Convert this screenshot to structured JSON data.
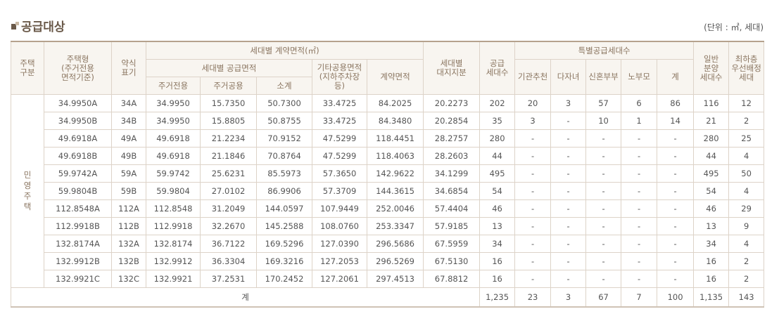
{
  "header": {
    "title": "공급대상",
    "unit": "(단위 : ㎡, 세대)"
  },
  "table": {
    "head": {
      "row1": [
        "주택\n구분",
        "주택형\n(주거전용\n면적기준)",
        "약식\n표기",
        "세대별 계약면적(㎡)",
        "세대별\n대지지분",
        "공급\n세대수",
        "특별공급세대수",
        "일반\n분양\n세대수",
        "최하층\n우선배정\n세대"
      ],
      "row2": [
        "세대별 공급면적",
        "기타공용면적\n(지하주차장\n등)",
        "계약면적",
        "기관추천",
        "다자녀",
        "신혼부부",
        "노부모",
        "계"
      ],
      "row3": [
        "주거전용",
        "주거공용",
        "소계"
      ]
    },
    "group": "민\n영\n주\n택",
    "rows": [
      [
        "34.9950A",
        "34A",
        "34.9950",
        "15.7350",
        "50.7300",
        "33.4725",
        "84.2025",
        "20.2273",
        "202",
        "20",
        "3",
        "57",
        "6",
        "86",
        "116",
        "12"
      ],
      [
        "34.9950B",
        "34B",
        "34.9950",
        "15.8805",
        "50.8755",
        "33.4725",
        "84.3480",
        "20.2854",
        "35",
        "3",
        "-",
        "10",
        "1",
        "14",
        "21",
        "2"
      ],
      [
        "49.6918A",
        "49A",
        "49.6918",
        "21.2234",
        "70.9152",
        "47.5299",
        "118.4451",
        "28.2757",
        "280",
        "-",
        "-",
        "-",
        "-",
        "-",
        "280",
        "25"
      ],
      [
        "49.6918B",
        "49B",
        "49.6918",
        "21.1846",
        "70.8764",
        "47.5299",
        "118.4063",
        "28.2603",
        "44",
        "-",
        "-",
        "-",
        "-",
        "-",
        "44",
        "4"
      ],
      [
        "59.9742A",
        "59A",
        "59.9742",
        "25.6231",
        "85.5973",
        "57.3650",
        "142.9622",
        "34.1299",
        "495",
        "-",
        "-",
        "-",
        "-",
        "-",
        "495",
        "50"
      ],
      [
        "59.9804B",
        "59B",
        "59.9804",
        "27.0102",
        "86.9906",
        "57.3709",
        "144.3615",
        "34.6854",
        "54",
        "-",
        "-",
        "-",
        "-",
        "-",
        "54",
        "4"
      ],
      [
        "112.8548A",
        "112A",
        "112.8548",
        "31.2049",
        "144.0597",
        "107.9449",
        "252.0046",
        "57.4404",
        "46",
        "-",
        "-",
        "-",
        "-",
        "-",
        "46",
        "29"
      ],
      [
        "112.9918B",
        "112B",
        "112.9918",
        "32.2670",
        "145.2588",
        "108.0760",
        "253.3347",
        "57.9185",
        "13",
        "-",
        "-",
        "-",
        "-",
        "-",
        "13",
        "9"
      ],
      [
        "132.8174A",
        "132A",
        "132.8174",
        "36.7122",
        "169.5296",
        "127.0390",
        "296.5686",
        "67.5959",
        "34",
        "-",
        "-",
        "-",
        "-",
        "-",
        "34",
        "4"
      ],
      [
        "132.9912B",
        "132B",
        "132.9912",
        "36.3304",
        "169.3216",
        "127.2053",
        "296.5269",
        "67.5130",
        "16",
        "-",
        "-",
        "-",
        "-",
        "-",
        "16",
        "2"
      ],
      [
        "132.9921C",
        "132C",
        "132.9921",
        "37.2531",
        "170.2452",
        "127.2061",
        "297.4513",
        "67.8812",
        "16",
        "-",
        "-",
        "-",
        "-",
        "-",
        "16",
        "2"
      ]
    ],
    "total": {
      "label": "계",
      "values": [
        "1,235",
        "23",
        "3",
        "67",
        "7",
        "100",
        "1,135",
        "143"
      ]
    }
  }
}
